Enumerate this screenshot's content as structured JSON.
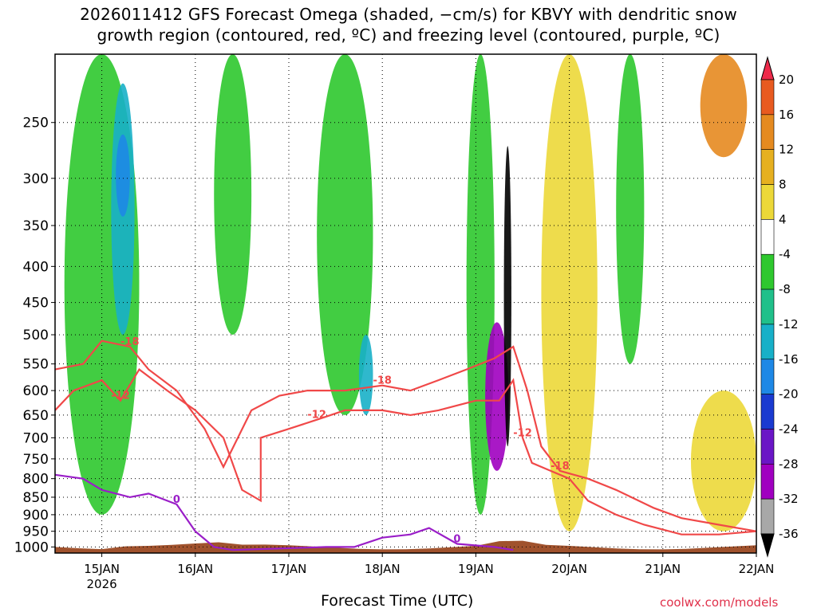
{
  "title_line1": "2026011412 GFS Forecast Omega (shaded, −cm/s) for KBVY with dendritic snow",
  "title_line2": "growth region (contoured, red, ºC) and freezing level (contoured, purple, ºC)",
  "xlabel": "Forecast Time (UTC)",
  "credit": "coolwx.com/models",
  "chart_data": {
    "type": "heatmap",
    "title": "2026011412 GFS Forecast Omega (shaded, −cm/s) for KBVY with dendritic snow growth region (contoured, red, ºC) and freezing level (contoured, purple, ºC)",
    "xlabel": "Forecast Time (UTC)",
    "ylabel": "",
    "x_ticks": [
      {
        "label": "15JAN",
        "day": 15,
        "sub": "2026"
      },
      {
        "label": "16JAN",
        "day": 16
      },
      {
        "label": "17JAN",
        "day": 17
      },
      {
        "label": "18JAN",
        "day": 18
      },
      {
        "label": "19JAN",
        "day": 19
      },
      {
        "label": "20JAN",
        "day": 20
      },
      {
        "label": "21JAN",
        "day": 21
      },
      {
        "label": "22JAN",
        "day": 22
      }
    ],
    "xlim": [
      14.5,
      22.0
    ],
    "y_ticks": [
      250,
      300,
      350,
      400,
      450,
      500,
      550,
      600,
      650,
      700,
      750,
      800,
      850,
      900,
      950,
      1000
    ],
    "ylim": [
      200,
      1020
    ],
    "y_scale": "log-pressure (inverted)",
    "colorbar": {
      "labels": [
        "20",
        "16",
        "12",
        "8",
        "4",
        "-4",
        "-8",
        "-12",
        "-16",
        "-20",
        "-24",
        "-28",
        "-32",
        "-36"
      ],
      "colors": [
        "#ee2a4a",
        "#e85a20",
        "#e58a20",
        "#e6b020",
        "#ecd838",
        "#ffffff",
        "#2ec82e",
        "#20c08a",
        "#18b0c8",
        "#1e88e6",
        "#1a3ad0",
        "#6a16c6",
        "#a000c0",
        "#a8a8a8",
        "#000000"
      ]
    },
    "omega_regions": [
      {
        "label": "green",
        "value": -6,
        "x": [
          14.6,
          15.4
        ],
        "p": [
          200,
          900
        ]
      },
      {
        "label": "teal",
        "value": -12,
        "x": [
          15.1,
          15.35
        ],
        "p": [
          220,
          500
        ]
      },
      {
        "label": "blue",
        "value": -18,
        "x": [
          15.15,
          15.3
        ],
        "p": [
          260,
          340
        ]
      },
      {
        "label": "green",
        "value": -6,
        "x": [
          16.2,
          16.6
        ],
        "p": [
          200,
          500
        ]
      },
      {
        "label": "green",
        "value": -6,
        "x": [
          17.3,
          17.9
        ],
        "p": [
          200,
          650
        ]
      },
      {
        "label": "teal",
        "value": -12,
        "x": [
          17.75,
          17.9
        ],
        "p": [
          500,
          650
        ]
      },
      {
        "label": "green",
        "value": -6,
        "x": [
          18.9,
          19.2
        ],
        "p": [
          200,
          900
        ]
      },
      {
        "label": "purple",
        "value": -28,
        "x": [
          19.1,
          19.35
        ],
        "p": [
          480,
          780
        ]
      },
      {
        "label": "black",
        "value": -40,
        "x": [
          19.3,
          19.38
        ],
        "p": [
          270,
          720
        ]
      },
      {
        "label": "yellow",
        "value": 6,
        "x": [
          19.7,
          20.3
        ],
        "p": [
          200,
          950
        ]
      },
      {
        "label": "green",
        "value": -6,
        "x": [
          20.5,
          20.8
        ],
        "p": [
          200,
          550
        ]
      },
      {
        "label": "orange",
        "value": 12,
        "x": [
          21.4,
          21.9
        ],
        "p": [
          200,
          280
        ]
      },
      {
        "label": "yellow",
        "value": 6,
        "x": [
          21.3,
          22.0
        ],
        "p": [
          600,
          950
        ]
      }
    ],
    "dgz_contours": [
      {
        "label": "-12",
        "color": "#f04848",
        "points": [
          [
            14.5,
            640
          ],
          [
            14.7,
            600
          ],
          [
            15.0,
            580
          ],
          [
            15.2,
            620
          ],
          [
            15.4,
            560
          ],
          [
            15.7,
            600
          ],
          [
            16.0,
            640
          ],
          [
            16.3,
            700
          ],
          [
            16.5,
            830
          ],
          [
            16.7,
            860
          ],
          [
            16.7,
            700
          ],
          [
            17.0,
            680
          ],
          [
            17.3,
            660
          ],
          [
            17.6,
            640
          ],
          [
            18.0,
            640
          ],
          [
            18.3,
            650
          ],
          [
            18.6,
            640
          ],
          [
            19.0,
            620
          ],
          [
            19.25,
            620
          ],
          [
            19.4,
            580
          ],
          [
            19.5,
            700
          ],
          [
            19.6,
            760
          ],
          [
            19.8,
            780
          ],
          [
            20.0,
            800
          ],
          [
            20.2,
            860
          ],
          [
            20.5,
            900
          ],
          [
            20.8,
            930
          ],
          [
            21.2,
            960
          ],
          [
            21.6,
            960
          ],
          [
            22.0,
            950
          ]
        ]
      },
      {
        "label": "-18",
        "color": "#f04848",
        "points": [
          [
            14.5,
            560
          ],
          [
            14.8,
            550
          ],
          [
            15.0,
            510
          ],
          [
            15.3,
            520
          ],
          [
            15.5,
            560
          ],
          [
            15.8,
            600
          ],
          [
            16.1,
            680
          ],
          [
            16.3,
            770
          ],
          [
            16.6,
            640
          ],
          [
            16.9,
            610
          ],
          [
            17.2,
            600
          ],
          [
            17.6,
            600
          ],
          [
            18.0,
            590
          ],
          [
            18.3,
            600
          ],
          [
            18.6,
            580
          ],
          [
            18.9,
            560
          ],
          [
            19.2,
            540
          ],
          [
            19.4,
            520
          ],
          [
            19.55,
            600
          ],
          [
            19.7,
            720
          ],
          [
            19.9,
            780
          ],
          [
            20.2,
            800
          ],
          [
            20.5,
            830
          ],
          [
            20.9,
            880
          ],
          [
            21.2,
            910
          ],
          [
            21.6,
            930
          ],
          [
            22.0,
            950
          ]
        ]
      }
    ],
    "freezing_level": {
      "label": "0",
      "color": "#9a1ec8",
      "points": [
        [
          14.5,
          790
        ],
        [
          14.8,
          800
        ],
        [
          15.0,
          830
        ],
        [
          15.3,
          850
        ],
        [
          15.5,
          840
        ],
        [
          15.8,
          870
        ],
        [
          16.0,
          950
        ],
        [
          16.2,
          1000
        ],
        [
          16.4,
          1010
        ],
        [
          17.4,
          1000
        ],
        [
          17.7,
          1000
        ],
        [
          18.0,
          970
        ],
        [
          18.3,
          960
        ],
        [
          18.5,
          940
        ],
        [
          18.8,
          990
        ],
        [
          19.2,
          1000
        ],
        [
          19.4,
          1010
        ]
      ]
    }
  }
}
